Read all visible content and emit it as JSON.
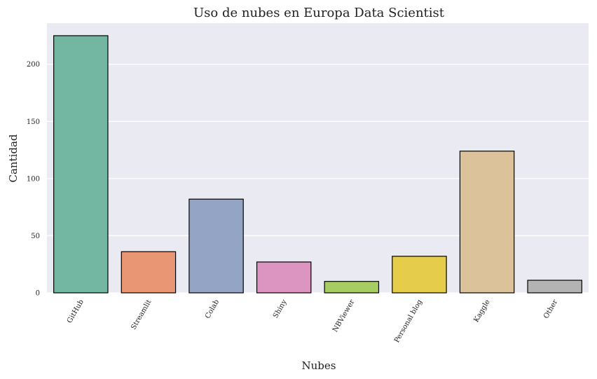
{
  "chart_data": {
    "type": "bar",
    "title": "Uso de nubes en Europa Data Scientist",
    "xlabel": "Nubes",
    "ylabel": "Cantidad",
    "categories": [
      "GitHub",
      "Streamlit",
      "Colab",
      "Shiny",
      "NBViewer",
      "Personal blog",
      "Kaggle",
      "Other"
    ],
    "values": [
      225,
      36,
      82,
      27,
      10,
      32,
      124,
      11
    ],
    "colors": [
      "#73b6a1",
      "#e99674",
      "#94a4c4",
      "#dc95c1",
      "#a6cd63",
      "#e5cc4a",
      "#dbc29b",
      "#b3b3b3"
    ],
    "edge_color": "#000000",
    "yticks": [
      0,
      50,
      100,
      150,
      200
    ],
    "ylim": [
      0,
      236
    ],
    "grid": true,
    "background": "#eaeaf2",
    "grid_color": "#ffffff"
  }
}
